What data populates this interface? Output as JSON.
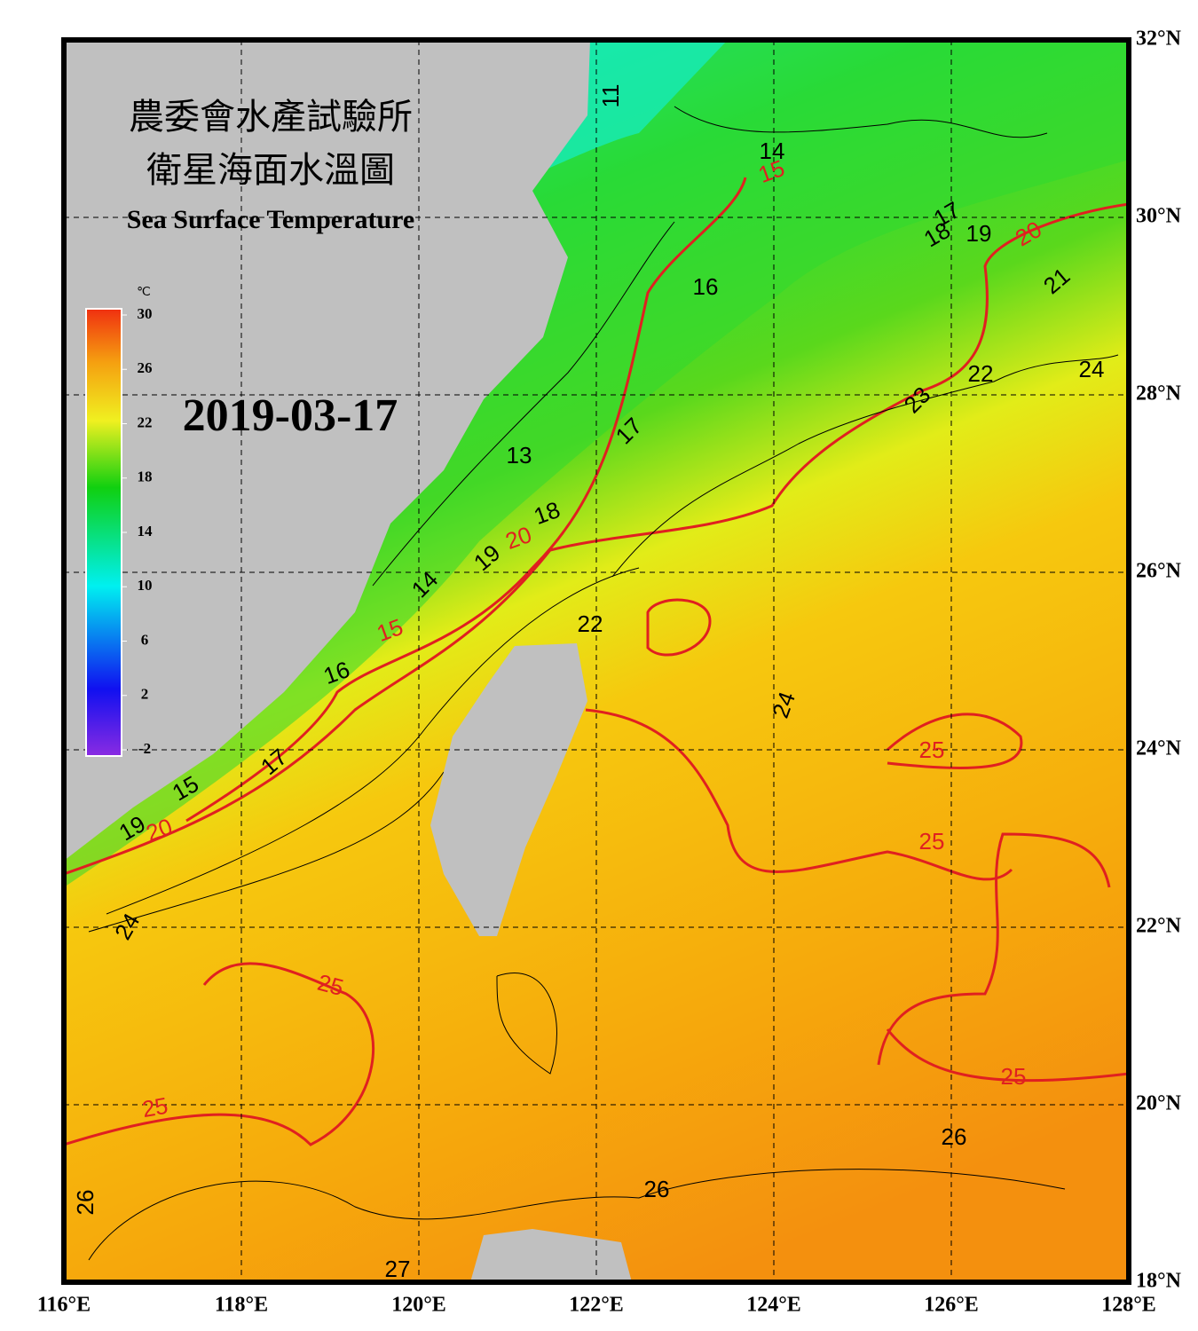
{
  "title": {
    "line1": "農委會水產試驗所",
    "line2": "衛星海面水溫圖",
    "english": "Sea Surface Temperature"
  },
  "date": "2019-03-17",
  "colorbar": {
    "unit": "℃",
    "ticks": [
      30,
      26,
      22,
      18,
      14,
      10,
      6,
      2,
      -2
    ]
  },
  "axes": {
    "longitude": [
      "116°E",
      "118°E",
      "120°E",
      "122°E",
      "124°E",
      "126°E",
      "128°E"
    ],
    "latitude": [
      "32°N",
      "30°N",
      "28°N",
      "26°N",
      "24°N",
      "22°N",
      "20°N",
      "18°N"
    ]
  },
  "isotherm_labels": [
    "11",
    "14",
    "17",
    "18",
    "19",
    "21",
    "16",
    "22",
    "24",
    "23",
    "17",
    "13",
    "18",
    "19",
    "14",
    "16",
    "22",
    "24",
    "17",
    "15",
    "19",
    "24",
    "26",
    "26",
    "26",
    "27"
  ],
  "major_isotherm_labels": [
    "15",
    "20",
    "20",
    "15",
    "25",
    "20",
    "25",
    "25",
    "25",
    "25"
  ]
}
